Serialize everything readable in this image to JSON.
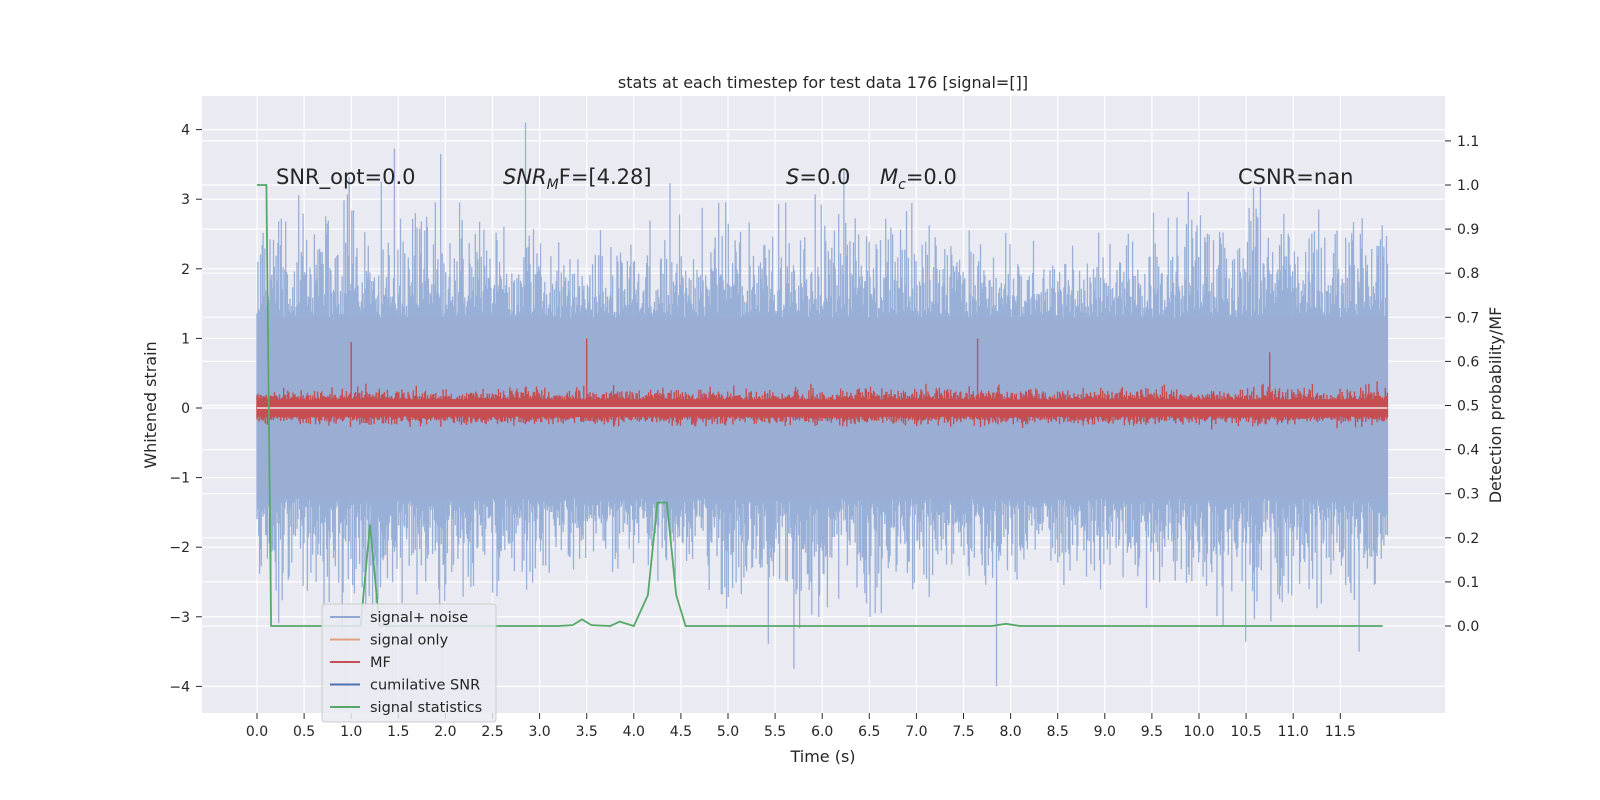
{
  "chart_data": {
    "type": "line",
    "title": "stats at each timestep for test data 176 [signal=[]]",
    "xlabel": "Time (s)",
    "ylabel": "Whitened strain",
    "y2label": "Detection probability/MF",
    "xlim": [
      -0.6,
      12.6
    ],
    "ylim": [
      -4.4,
      4.4
    ],
    "y2lim": [
      -0.195,
      1.195
    ],
    "x_ticks": [
      "0.0",
      "0.5",
      "1.0",
      "1.5",
      "2.0",
      "2.5",
      "3.0",
      "3.5",
      "4.0",
      "4.5",
      "5.0",
      "5.5",
      "6.0",
      "6.5",
      "7.0",
      "7.5",
      "8.0",
      "8.5",
      "9.0",
      "9.5",
      "10.0",
      "10.5",
      "11.0",
      "11.5"
    ],
    "y_ticks": [
      "−4",
      "−3",
      "−2",
      "−1",
      "0",
      "1",
      "2",
      "3",
      "4"
    ],
    "y2_ticks": [
      "0.0",
      "0.1",
      "0.2",
      "0.3",
      "0.4",
      "0.5",
      "0.6",
      "0.7",
      "0.8",
      "0.9",
      "1.0",
      "1.1"
    ],
    "grid": true,
    "legend_position": "lower-left",
    "annotations": {
      "snr_opt": "SNR_opt=0.0",
      "snr_mf": "SNR",
      "snr_mf_sub": "M",
      "snr_mf_rest": "F=[4.28]",
      "s": "S",
      "s_rest": "=0.0",
      "mc": "M",
      "mc_sub": "c",
      "mc_rest": "=0.0",
      "csnr": "CSNR=nan"
    },
    "legend": [
      {
        "label": "signal+ noise",
        "color": "#8fa8d4"
      },
      {
        "label": "signal only",
        "color": "#dda283"
      },
      {
        "label": "MF",
        "color": "#c44e52"
      },
      {
        "label": "cumilative SNR",
        "color": "#4c72b0"
      },
      {
        "label": "signal statistics",
        "color": "#55a868"
      }
    ],
    "series": [
      {
        "name": "signal+ noise",
        "axis": "left",
        "x_range": [
          0.0,
          12.0
        ],
        "envelope_upper": 1.3,
        "envelope_lower": -1.3,
        "max": 4.1,
        "min": -4.0,
        "peaks": [
          {
            "x": 2.85,
            "y": 4.1
          },
          {
            "x": 1.95,
            "y": 3.65
          },
          {
            "x": 5.7,
            "y": -3.75
          },
          {
            "x": 7.85,
            "y": -4.0
          },
          {
            "x": 11.7,
            "y": -3.5
          }
        ]
      },
      {
        "name": "MF",
        "axis": "left",
        "x_range": [
          0.0,
          12.0
        ],
        "envelope_upper": 0.35,
        "envelope_lower": -0.35,
        "peaks": [
          {
            "x": 1.0,
            "y": 0.95
          },
          {
            "x": 3.5,
            "y": 1.0
          },
          {
            "x": 7.65,
            "y": 1.0
          },
          {
            "x": 10.75,
            "y": 0.8
          }
        ]
      },
      {
        "name": "signal statistics",
        "axis": "right",
        "x": [
          0.0,
          0.05,
          0.1,
          0.15,
          0.3,
          0.6,
          0.9,
          1.1,
          1.2,
          1.3,
          1.6,
          2.5,
          3.2,
          3.35,
          3.45,
          3.55,
          3.75,
          3.85,
          4.0,
          4.15,
          4.25,
          4.35,
          4.45,
          4.55,
          5.0,
          7.8,
          7.95,
          8.1,
          8.5,
          9.0,
          10.4,
          11.0,
          11.5,
          11.95
        ],
        "y": [
          1.0,
          1.0,
          1.0,
          0.0,
          0.0,
          0.0,
          0.0,
          0.0,
          0.23,
          0.0,
          0.0,
          0.0,
          0.0,
          0.002,
          0.015,
          0.002,
          0.0,
          0.01,
          0.0,
          0.07,
          0.28,
          0.28,
          0.07,
          0.0,
          0.0,
          0.0,
          0.005,
          0.0,
          0.0,
          0.0,
          0.0,
          0.0,
          0.0,
          0.0
        ]
      }
    ]
  }
}
